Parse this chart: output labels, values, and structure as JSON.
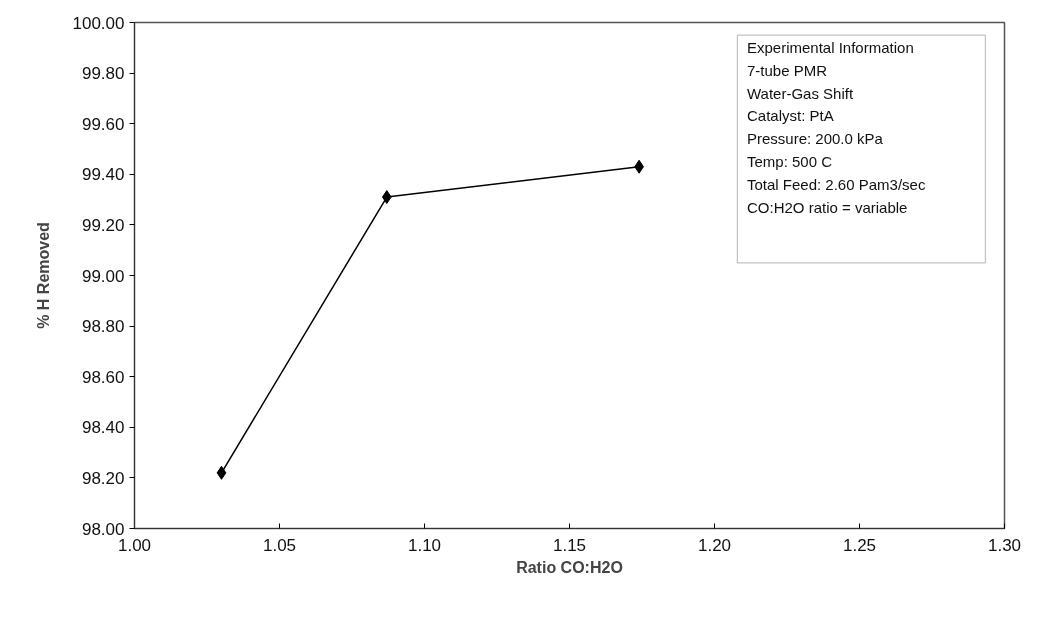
{
  "chart_data": {
    "type": "line",
    "xlabel": "Ratio CO:H2O",
    "ylabel": "% H Removed",
    "x": [
      1.03,
      1.087,
      1.174
    ],
    "series": [
      {
        "color": "#000000",
        "values": [
          98.22,
          99.31,
          99.43
        ]
      }
    ],
    "xlim": [
      1.0,
      1.3
    ],
    "xticks": [
      {
        "value": 1.0,
        "label": "1.00"
      },
      {
        "value": 1.05,
        "label": "1.05"
      },
      {
        "value": 1.1,
        "label": "1.10"
      },
      {
        "value": 1.15,
        "label": "1.15"
      },
      {
        "value": 1.2,
        "label": "1.20"
      },
      {
        "value": 1.25,
        "label": "1.25"
      },
      {
        "value": 1.3,
        "label": "1.30"
      }
    ],
    "ylim": [
      98.0,
      100.0
    ],
    "yticks": [
      {
        "value": 98.0,
        "label": "98.00"
      },
      {
        "value": 98.2,
        "label": "98.20"
      },
      {
        "value": 98.4,
        "label": "98.40"
      },
      {
        "value": 98.6,
        "label": "98.60"
      },
      {
        "value": 98.8,
        "label": "98.80"
      },
      {
        "value": 99.0,
        "label": "99.00"
      },
      {
        "value": 99.2,
        "label": "99.20"
      },
      {
        "value": 99.4,
        "label": "99.40"
      },
      {
        "value": 99.6,
        "label": "99.60"
      },
      {
        "value": 99.8,
        "label": "99.80"
      },
      {
        "value": 100.0,
        "label": "100.00"
      }
    ],
    "annotations": [
      "Experimental Information",
      "7-tube PMR",
      "Water-Gas Shift",
      "Catalyst:  PtA",
      "Pressure: 200.0 kPa",
      "Temp: 500 C",
      "Total Feed: 2.60 Pam3/sec",
      "CO:H2O ratio = variable"
    ],
    "grid": false,
    "marker": "diamond",
    "line_style": "solid"
  }
}
